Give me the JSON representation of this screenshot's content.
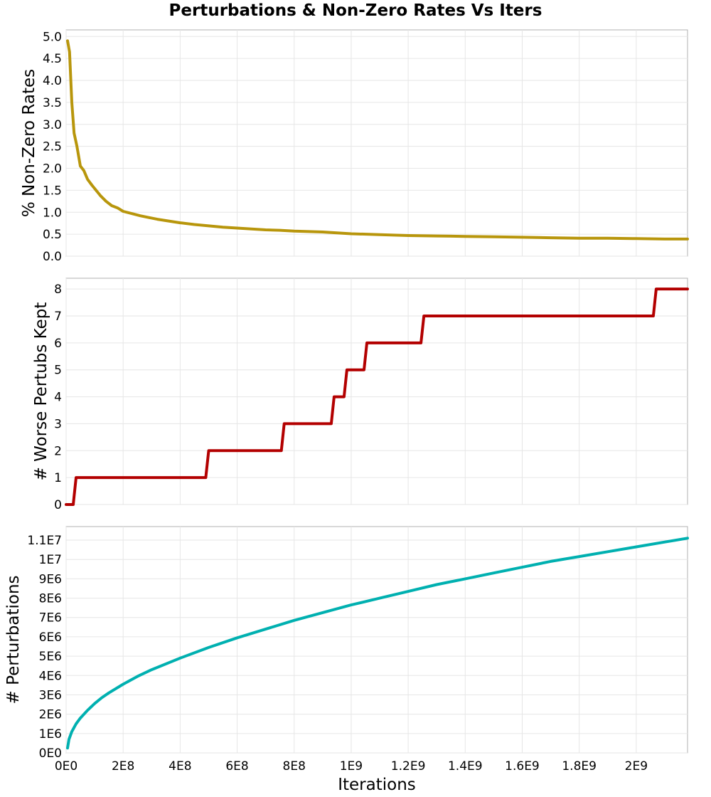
{
  "title": "Perturbations & Non-Zero Rates Vs Iters",
  "x_axis": {
    "label": "Iterations",
    "range": [
      0,
      2180000000
    ],
    "ticks": [
      0,
      200000000,
      400000000,
      600000000,
      800000000,
      1000000000,
      1200000000,
      1400000000,
      1600000000,
      1800000000,
      2000000000
    ],
    "tick_labels": [
      "0E0",
      "2E8",
      "4E8",
      "6E8",
      "8E8",
      "1E9",
      "1.2E9",
      "1.4E9",
      "1.6E9",
      "1.8E9",
      "2E9"
    ]
  },
  "chart_data": [
    {
      "type": "line",
      "ylabel": "% Non-Zero Rates",
      "ylim": [
        0,
        5.15
      ],
      "yticks": [
        0,
        0.5,
        1.0,
        1.5,
        2.0,
        2.5,
        3.0,
        3.5,
        4.0,
        4.5,
        5.0
      ],
      "ytick_labels": [
        "0.0",
        "0.5",
        "1.0",
        "1.5",
        "2.0",
        "2.5",
        "3.0",
        "3.5",
        "4.0",
        "4.5",
        "5.0"
      ],
      "color": "#b8960c",
      "grid": true,
      "x": [
        5000000,
        12000000,
        20000000,
        28000000,
        38000000,
        50000000,
        62000000,
        75000000,
        90000000,
        105000000,
        120000000,
        140000000,
        160000000,
        180000000,
        200000000,
        230000000,
        260000000,
        290000000,
        320000000,
        360000000,
        400000000,
        450000000,
        500000000,
        550000000,
        600000000,
        650000000,
        700000000,
        750000000,
        800000000,
        850000000,
        900000000,
        950000000,
        1000000000,
        1100000000,
        1200000000,
        1300000000,
        1400000000,
        1500000000,
        1600000000,
        1700000000,
        1800000000,
        1900000000,
        2000000000,
        2100000000,
        2180000000
      ],
      "y": [
        4.9,
        4.65,
        3.5,
        2.8,
        2.5,
        2.05,
        1.95,
        1.75,
        1.62,
        1.5,
        1.38,
        1.25,
        1.15,
        1.1,
        1.02,
        0.97,
        0.92,
        0.88,
        0.84,
        0.8,
        0.76,
        0.72,
        0.69,
        0.66,
        0.64,
        0.62,
        0.6,
        0.59,
        0.57,
        0.56,
        0.55,
        0.53,
        0.51,
        0.49,
        0.47,
        0.46,
        0.45,
        0.44,
        0.43,
        0.42,
        0.41,
        0.41,
        0.4,
        0.39,
        0.39
      ]
    },
    {
      "type": "line",
      "step": true,
      "ylabel": "# Worse Pertubs Kept",
      "ylim": [
        0,
        8.4
      ],
      "yticks": [
        0,
        1,
        2,
        3,
        4,
        5,
        6,
        7,
        8
      ],
      "ytick_labels": [
        "0",
        "1",
        "2",
        "3",
        "4",
        "5",
        "6",
        "7",
        "8"
      ],
      "color": "#b30000",
      "grid": true,
      "x": [
        0,
        25000000,
        35000000,
        490000000,
        500000000,
        755000000,
        765000000,
        930000000,
        940000000,
        975000000,
        985000000,
        1045000000,
        1055000000,
        1245000000,
        1255000000,
        2060000000,
        2070000000,
        2180000000
      ],
      "y": [
        0,
        0,
        1,
        1,
        2,
        2,
        3,
        3,
        4,
        4,
        5,
        5,
        6,
        6,
        7,
        7,
        8,
        8
      ]
    },
    {
      "type": "line",
      "ylabel": "# Perturbations",
      "ylim": [
        0,
        11700000
      ],
      "yticks": [
        0,
        1000000,
        2000000,
        3000000,
        4000000,
        5000000,
        6000000,
        7000000,
        8000000,
        9000000,
        10000000,
        11000000
      ],
      "ytick_labels": [
        "0E0",
        "1E6",
        "2E6",
        "3E6",
        "4E6",
        "5E6",
        "6E6",
        "7E6",
        "8E6",
        "9E6",
        "1E7",
        "1.1E7"
      ],
      "color": "#00b0b0",
      "grid": true,
      "x": [
        5000000,
        10000000,
        20000000,
        35000000,
        50000000,
        75000000,
        100000000,
        125000000,
        150000000,
        200000000,
        250000000,
        300000000,
        400000000,
        500000000,
        600000000,
        700000000,
        800000000,
        900000000,
        1000000000,
        1100000000,
        1200000000,
        1300000000,
        1400000000,
        1500000000,
        1600000000,
        1700000000,
        1800000000,
        1900000000,
        2000000000,
        2100000000,
        2180000000
      ],
      "y": [
        250000,
        700000,
        1100000,
        1500000,
        1800000,
        2200000,
        2550000,
        2850000,
        3100000,
        3550000,
        3950000,
        4300000,
        4900000,
        5450000,
        5950000,
        6400000,
        6850000,
        7250000,
        7650000,
        8000000,
        8350000,
        8700000,
        9000000,
        9300000,
        9600000,
        9900000,
        10150000,
        10400000,
        10650000,
        10900000,
        11100000
      ]
    }
  ]
}
